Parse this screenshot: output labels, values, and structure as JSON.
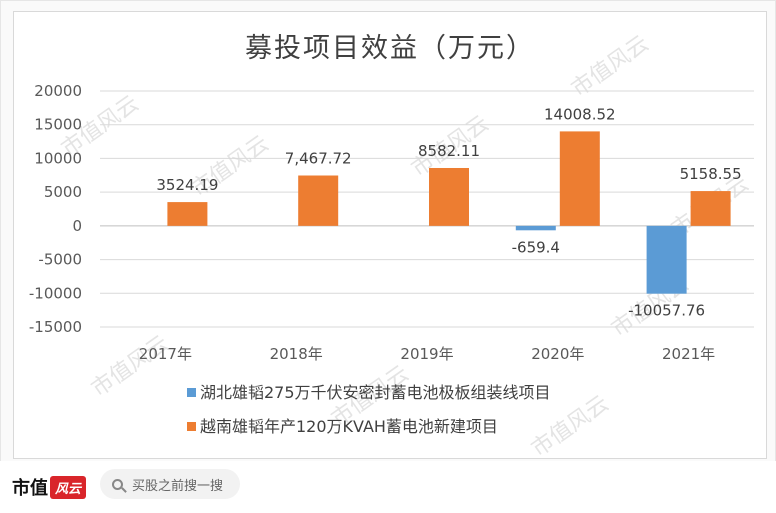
{
  "chart_data": {
    "type": "bar",
    "title": "募投项目效益（万元）",
    "categories": [
      "2017年",
      "2018年",
      "2019年",
      "2020年",
      "2021年"
    ],
    "series": [
      {
        "name": "湖北雄韬275万千伏安密封蓄电池极板组装线项目",
        "color": "#5b9bd5",
        "values": [
          null,
          null,
          null,
          -659.4,
          -10057.76
        ],
        "labels": [
          "",
          "",
          "",
          "-659.4",
          "-10057.76"
        ]
      },
      {
        "name": "越南雄韬年产120万KVAH蓄电池新建项目",
        "color": "#ed7d31",
        "values": [
          3524.19,
          7467.72,
          8582.11,
          14008.52,
          5158.55
        ],
        "labels": [
          "3524.19",
          "7,467.72",
          "8582.11",
          "14008.52",
          "5158.55"
        ]
      }
    ],
    "yticks": [
      "20000",
      "15000",
      "10000",
      "5000",
      "0",
      "-5000",
      "-10000",
      "-15000"
    ],
    "ylim": [
      -15000,
      20000
    ],
    "grid": true,
    "legend_position": "bottom"
  },
  "watermark": "市值风云",
  "footer": {
    "brand": "市值",
    "brand_mark": "风云",
    "search_placeholder": "买股之前搜一搜"
  }
}
